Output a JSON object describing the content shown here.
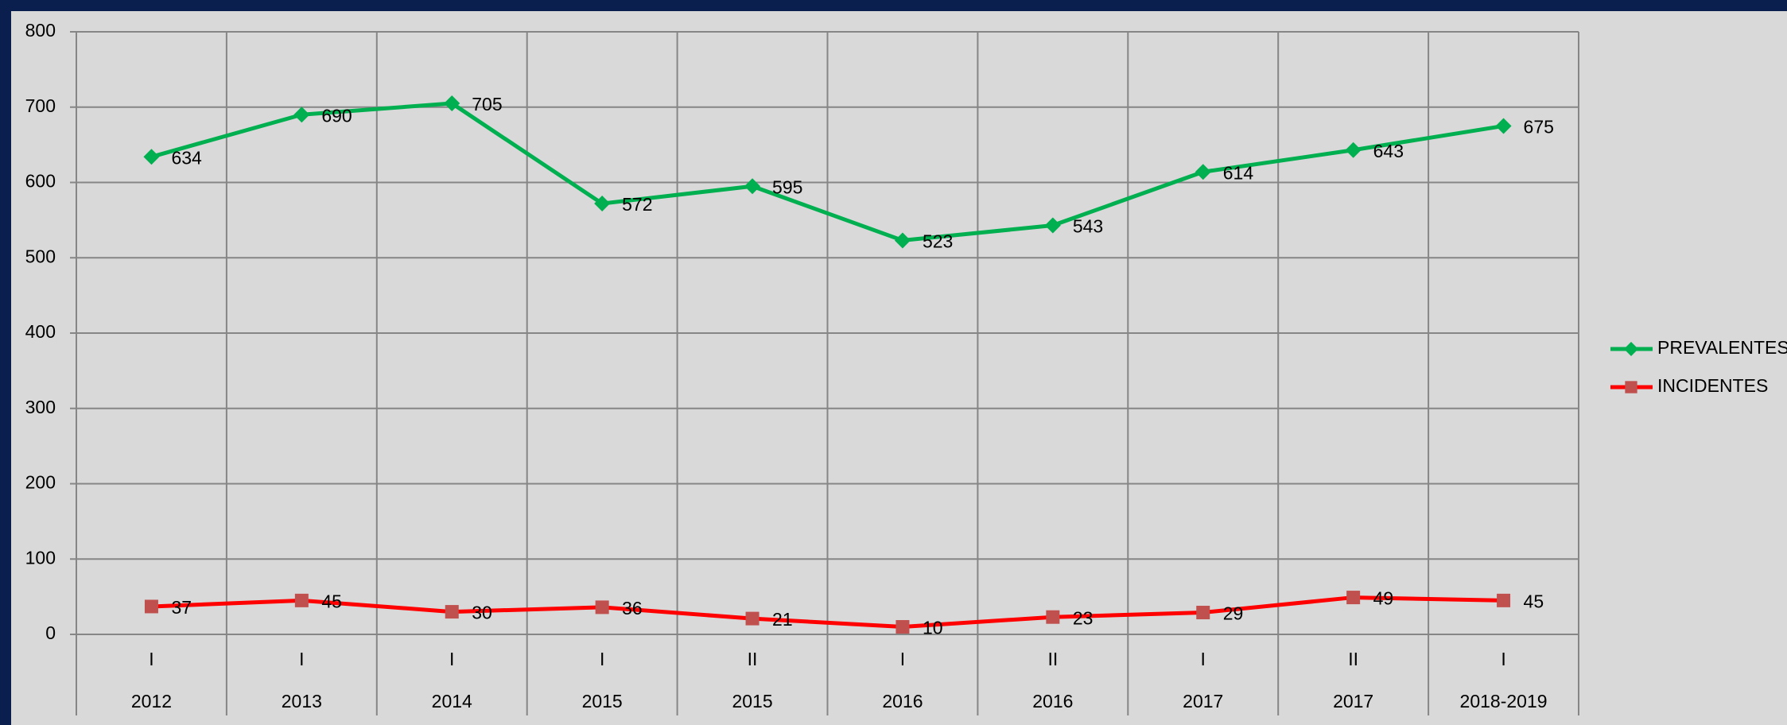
{
  "chart_data": {
    "type": "line",
    "categories": [
      {
        "period": "I",
        "year": "2012"
      },
      {
        "period": "I",
        "year": "2013"
      },
      {
        "period": "I",
        "year": "2014"
      },
      {
        "period": "I",
        "year": "2015"
      },
      {
        "period": "II",
        "year": "2015"
      },
      {
        "period": "I",
        "year": "2016"
      },
      {
        "period": "II",
        "year": "2016"
      },
      {
        "period": "I",
        "year": "2017"
      },
      {
        "period": "II",
        "year": "2017"
      },
      {
        "period": "I",
        "year": "2018-2019"
      }
    ],
    "series": [
      {
        "name": "PREVALENTES",
        "color": "#00b050",
        "marker": "diamond",
        "values": [
          634,
          690,
          705,
          572,
          595,
          523,
          543,
          614,
          643,
          675
        ]
      },
      {
        "name": "INCIDENTES",
        "color": "#ff0000",
        "marker_color": "#c0504d",
        "marker": "square",
        "values": [
          37,
          45,
          30,
          36,
          21,
          10,
          23,
          29,
          49,
          45
        ]
      }
    ],
    "ylim": [
      0,
      800
    ],
    "yticks": [
      0,
      100,
      200,
      300,
      400,
      500,
      600,
      700,
      800
    ],
    "grid": true,
    "legend": "right"
  }
}
